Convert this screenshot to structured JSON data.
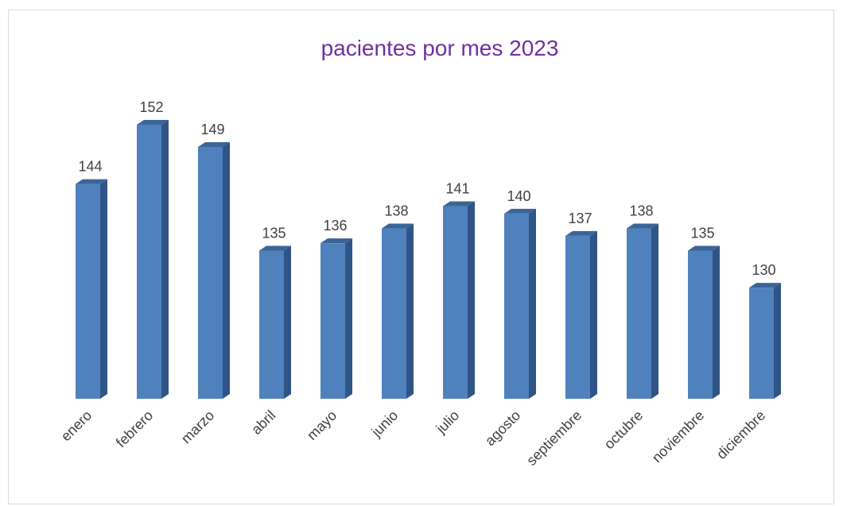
{
  "chart_data": {
    "type": "bar",
    "title": "pacientes por mes 2023",
    "categories": [
      "enero",
      "febrero",
      "marzo",
      "abril",
      "mayo",
      "junio",
      "julio",
      "agosto",
      "septiembre",
      "octubre",
      "noviembre",
      "diciembre"
    ],
    "values": [
      144,
      152,
      149,
      135,
      136,
      138,
      141,
      140,
      137,
      138,
      135,
      130
    ],
    "color": "#4f81bd",
    "ylim": [
      115,
      155
    ]
  }
}
